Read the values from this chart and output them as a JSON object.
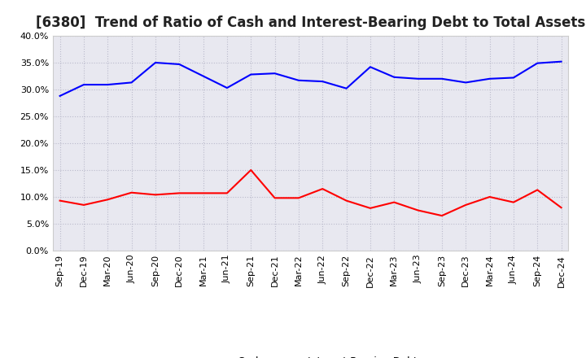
{
  "title": "[6380]  Trend of Ratio of Cash and Interest-Bearing Debt to Total Assets",
  "x_labels": [
    "Sep-19",
    "Dec-19",
    "Mar-20",
    "Jun-20",
    "Sep-20",
    "Dec-20",
    "Mar-21",
    "Jun-21",
    "Sep-21",
    "Dec-21",
    "Mar-22",
    "Jun-22",
    "Sep-22",
    "Dec-22",
    "Mar-23",
    "Jun-23",
    "Sep-23",
    "Dec-23",
    "Mar-24",
    "Jun-24",
    "Sep-24",
    "Dec-24"
  ],
  "cash": [
    0.093,
    0.085,
    0.095,
    0.108,
    0.104,
    0.107,
    0.107,
    0.107,
    0.15,
    0.098,
    0.098,
    0.115,
    0.093,
    0.079,
    0.09,
    0.075,
    0.065,
    0.085,
    0.1,
    0.09,
    0.113,
    0.08
  ],
  "debt": [
    0.288,
    0.309,
    0.309,
    0.313,
    0.35,
    0.347,
    0.325,
    0.303,
    0.328,
    0.33,
    0.317,
    0.315,
    0.302,
    0.342,
    0.323,
    0.32,
    0.32,
    0.313,
    0.32,
    0.322,
    0.349,
    0.352
  ],
  "cash_color": "#ff0000",
  "debt_color": "#0000ff",
  "background_color": "#ffffff",
  "plot_bg_color": "#e8e8f0",
  "grid_color": "#bbbbcc",
  "ylim": [
    0.0,
    0.4
  ],
  "yticks": [
    0.0,
    0.05,
    0.1,
    0.15,
    0.2,
    0.25,
    0.3,
    0.35,
    0.4
  ],
  "title_fontsize": 12,
  "legend_fontsize": 9,
  "tick_fontsize": 8
}
